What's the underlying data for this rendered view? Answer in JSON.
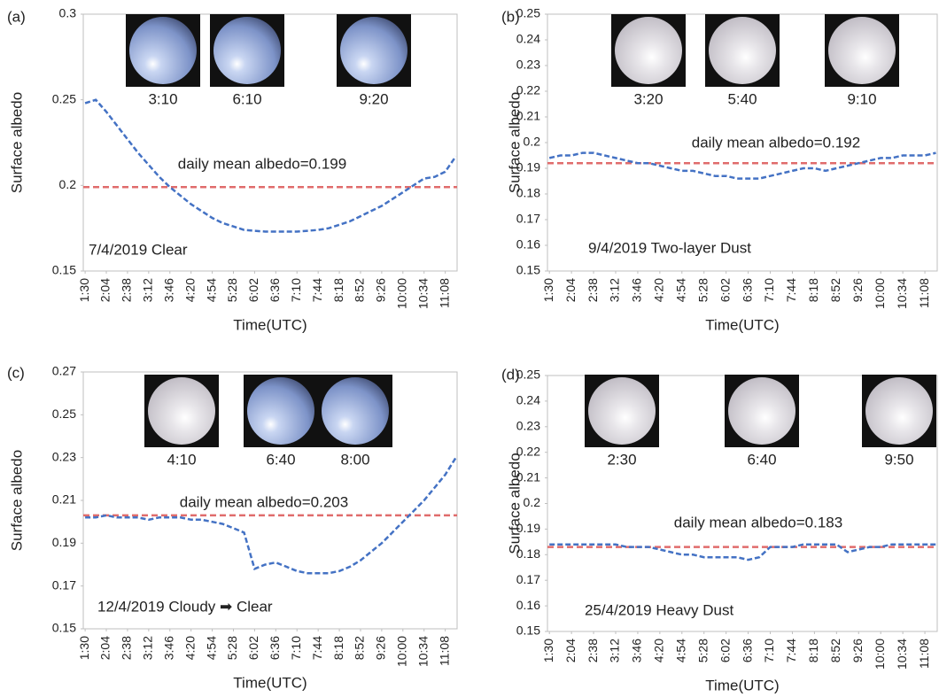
{
  "chart_data": [
    {
      "type": "line",
      "panel_label": "(a)",
      "ylabel": "Surface albedo",
      "xlabel": "Time(UTC)",
      "annotation": "daily mean albedo=0.199",
      "mean": 0.199,
      "mean_color": "#e06c6c",
      "note": "7/4/2019 Clear",
      "image_times": [
        "3:10",
        "6:10",
        "9:20"
      ],
      "x": [
        "1:30",
        "1:47",
        "2:04",
        "2:21",
        "2:38",
        "2:55",
        "3:12",
        "3:29",
        "3:46",
        "4:03",
        "4:20",
        "4:37",
        "4:54",
        "5:11",
        "5:28",
        "5:45",
        "6:02",
        "6:19",
        "6:36",
        "6:53",
        "7:10",
        "7:27",
        "7:44",
        "8:01",
        "8:18",
        "8:35",
        "8:52",
        "9:09",
        "9:26",
        "9:43",
        "10:00",
        "10:17",
        "10:34",
        "10:51",
        "11:08",
        "11:25"
      ],
      "values": [
        0.248,
        0.25,
        0.243,
        0.235,
        0.227,
        0.219,
        0.212,
        0.205,
        0.199,
        0.194,
        0.189,
        0.185,
        0.181,
        0.178,
        0.176,
        0.174,
        0.1735,
        0.173,
        0.173,
        0.173,
        0.173,
        0.1735,
        0.174,
        0.175,
        0.177,
        0.179,
        0.182,
        0.185,
        0.188,
        0.192,
        0.196,
        0.2,
        0.204,
        0.205,
        0.208,
        0.217
      ],
      "color": "#4472c4",
      "xlim": [
        "1:27",
        "11:27"
      ],
      "xticks": [
        "1:30",
        "2:04",
        "2:38",
        "3:12",
        "3:46",
        "4:20",
        "4:54",
        "5:28",
        "6:02",
        "6:36",
        "7:10",
        "7:44",
        "8:18",
        "8:52",
        "9:26",
        "10:00",
        "10:34",
        "11:08"
      ],
      "ylim": [
        0.15,
        0.3
      ],
      "yticks": [
        0.15,
        0.2,
        0.25,
        0.3
      ],
      "grid": false
    },
    {
      "type": "line",
      "panel_label": "(b)",
      "ylabel": "Surface albedo",
      "xlabel": "Time(UTC)",
      "annotation": "daily mean albedo=0.192",
      "mean": 0.192,
      "mean_color": "#e06c6c",
      "note": "9/4/2019 Two-layer Dust",
      "image_times": [
        "3:20",
        "5:40",
        "9:10"
      ],
      "x": [
        "1:30",
        "1:47",
        "2:04",
        "2:21",
        "2:38",
        "2:55",
        "3:12",
        "3:29",
        "3:46",
        "4:03",
        "4:20",
        "4:37",
        "4:54",
        "5:11",
        "5:28",
        "5:45",
        "6:02",
        "6:19",
        "6:36",
        "6:53",
        "7:10",
        "7:27",
        "7:44",
        "8:01",
        "8:18",
        "8:35",
        "8:52",
        "9:09",
        "9:26",
        "9:43",
        "10:00",
        "10:17",
        "10:34",
        "10:51",
        "11:08",
        "11:25"
      ],
      "values": [
        0.194,
        0.195,
        0.195,
        0.196,
        0.196,
        0.195,
        0.194,
        0.193,
        0.192,
        0.192,
        0.191,
        0.19,
        0.189,
        0.189,
        0.188,
        0.187,
        0.187,
        0.186,
        0.186,
        0.186,
        0.187,
        0.188,
        0.189,
        0.19,
        0.19,
        0.189,
        0.19,
        0.191,
        0.192,
        0.193,
        0.194,
        0.194,
        0.195,
        0.195,
        0.195,
        0.196
      ],
      "color": "#4472c4",
      "xlim": [
        "1:27",
        "11:27"
      ],
      "xticks": [
        "1:30",
        "2:04",
        "2:38",
        "3:12",
        "3:46",
        "4:20",
        "4:54",
        "5:28",
        "6:02",
        "6:36",
        "7:10",
        "7:44",
        "8:18",
        "8:52",
        "9:26",
        "10:00",
        "10:34",
        "11:08"
      ],
      "ylim": [
        0.15,
        0.25
      ],
      "yticks": [
        0.15,
        0.16,
        0.17,
        0.18,
        0.19,
        0.2,
        0.21,
        0.22,
        0.23,
        0.24,
        0.25
      ],
      "grid": false
    },
    {
      "type": "line",
      "panel_label": "(c)",
      "ylabel": "Surface albedo",
      "xlabel": "Time(UTC)",
      "annotation": "daily mean albedo=0.203",
      "mean": 0.203,
      "mean_color": "#e06c6c",
      "note": "12/4/2019 Cloudy ➡ Clear",
      "image_times": [
        "4:10",
        "6:40",
        "8:00"
      ],
      "x": [
        "1:30",
        "1:47",
        "2:04",
        "2:21",
        "2:38",
        "2:55",
        "3:12",
        "3:29",
        "3:46",
        "4:03",
        "4:20",
        "4:37",
        "4:54",
        "5:11",
        "5:28",
        "5:45",
        "6:02",
        "6:19",
        "6:36",
        "6:53",
        "7:10",
        "7:27",
        "7:44",
        "8:01",
        "8:18",
        "8:35",
        "8:52",
        "9:09",
        "9:26",
        "9:43",
        "10:00",
        "10:17",
        "10:34",
        "10:51",
        "11:08",
        "11:25"
      ],
      "values": [
        0.202,
        0.202,
        0.203,
        0.202,
        0.202,
        0.202,
        0.201,
        0.202,
        0.202,
        0.202,
        0.201,
        0.201,
        0.2,
        0.199,
        0.197,
        0.195,
        0.178,
        0.18,
        0.181,
        0.179,
        0.177,
        0.176,
        0.176,
        0.176,
        0.177,
        0.179,
        0.182,
        0.186,
        0.19,
        0.195,
        0.2,
        0.205,
        0.21,
        0.216,
        0.222,
        0.23
      ],
      "color": "#4472c4",
      "xlim": [
        "1:27",
        "11:27"
      ],
      "xticks": [
        "1:30",
        "2:04",
        "2:38",
        "3:12",
        "3:46",
        "4:20",
        "4:54",
        "5:28",
        "6:02",
        "6:36",
        "7:10",
        "7:44",
        "8:18",
        "8:52",
        "9:26",
        "10:00",
        "10:34",
        "11:08"
      ],
      "ylim": [
        0.15,
        0.27
      ],
      "yticks": [
        0.15,
        0.17,
        0.19,
        0.21,
        0.23,
        0.25,
        0.27
      ],
      "grid": false
    },
    {
      "type": "line",
      "panel_label": "(d)",
      "ylabel": "Surface albedo",
      "xlabel": "Time(UTC)",
      "annotation": "daily mean albedo=0.183",
      "mean": 0.183,
      "mean_color": "#e06c6c",
      "note": "25/4/2019 Heavy Dust",
      "image_times": [
        "2:30",
        "6:40",
        "9:50"
      ],
      "x": [
        "1:30",
        "1:47",
        "2:04",
        "2:21",
        "2:38",
        "2:55",
        "3:12",
        "3:29",
        "3:46",
        "4:03",
        "4:20",
        "4:37",
        "4:54",
        "5:11",
        "5:28",
        "5:45",
        "6:02",
        "6:19",
        "6:36",
        "6:53",
        "7:10",
        "7:27",
        "7:44",
        "8:01",
        "8:18",
        "8:35",
        "8:52",
        "9:09",
        "9:26",
        "9:43",
        "10:00",
        "10:17",
        "10:34",
        "10:51",
        "11:08",
        "11:25"
      ],
      "values": [
        0.184,
        0.184,
        0.184,
        0.184,
        0.184,
        0.184,
        0.184,
        0.183,
        0.183,
        0.183,
        0.182,
        0.181,
        0.18,
        0.18,
        0.179,
        0.179,
        0.179,
        0.179,
        0.178,
        0.179,
        0.183,
        0.183,
        0.183,
        0.184,
        0.184,
        0.184,
        0.184,
        0.181,
        0.182,
        0.183,
        0.183,
        0.184,
        0.184,
        0.184,
        0.184,
        0.184
      ],
      "color": "#4472c4",
      "xlim": [
        "1:27",
        "11:27"
      ],
      "xticks": [
        "1:30",
        "2:04",
        "2:38",
        "3:12",
        "3:46",
        "4:20",
        "4:54",
        "5:28",
        "6:02",
        "6:36",
        "7:10",
        "7:44",
        "8:18",
        "8:52",
        "9:26",
        "10:00",
        "10:34",
        "11:08"
      ],
      "ylim": [
        0.15,
        0.25
      ],
      "yticks": [
        0.15,
        0.16,
        0.17,
        0.18,
        0.19,
        0.2,
        0.21,
        0.22,
        0.23,
        0.24,
        0.25
      ],
      "grid": false
    }
  ]
}
